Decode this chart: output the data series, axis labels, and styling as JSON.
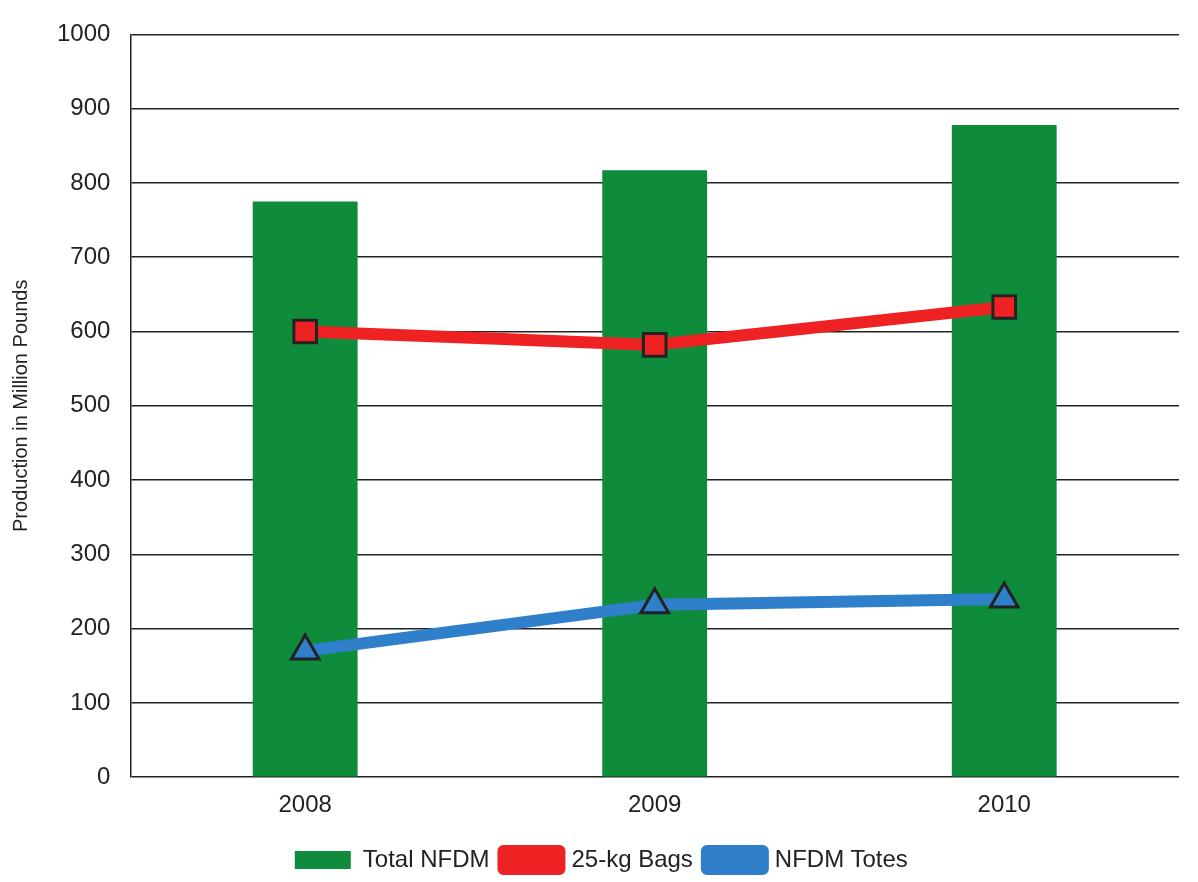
{
  "chart_data": {
    "type": "bar",
    "ylabel": "Production in Million Pounds",
    "categories": [
      "2008",
      "2009",
      "2010"
    ],
    "series": [
      {
        "name": "Total NFDM",
        "color": "#0f8c3b",
        "values": [
          775,
          817,
          878
        ]
      },
      {
        "name": "25-kg Bags",
        "type": "line",
        "color": "#ee2222",
        "marker": "square",
        "values": [
          600,
          582,
          633
        ]
      },
      {
        "name": "NFDM Totes",
        "type": "line",
        "color": "#2f7fcb",
        "marker": "triangle",
        "values": [
          170,
          232,
          240
        ]
      }
    ],
    "ylim": [
      0,
      1000
    ],
    "yticks": [
      0,
      100,
      200,
      300,
      400,
      500,
      600,
      700,
      800,
      900,
      1000
    ],
    "grid": "y",
    "legend": "bottom"
  }
}
